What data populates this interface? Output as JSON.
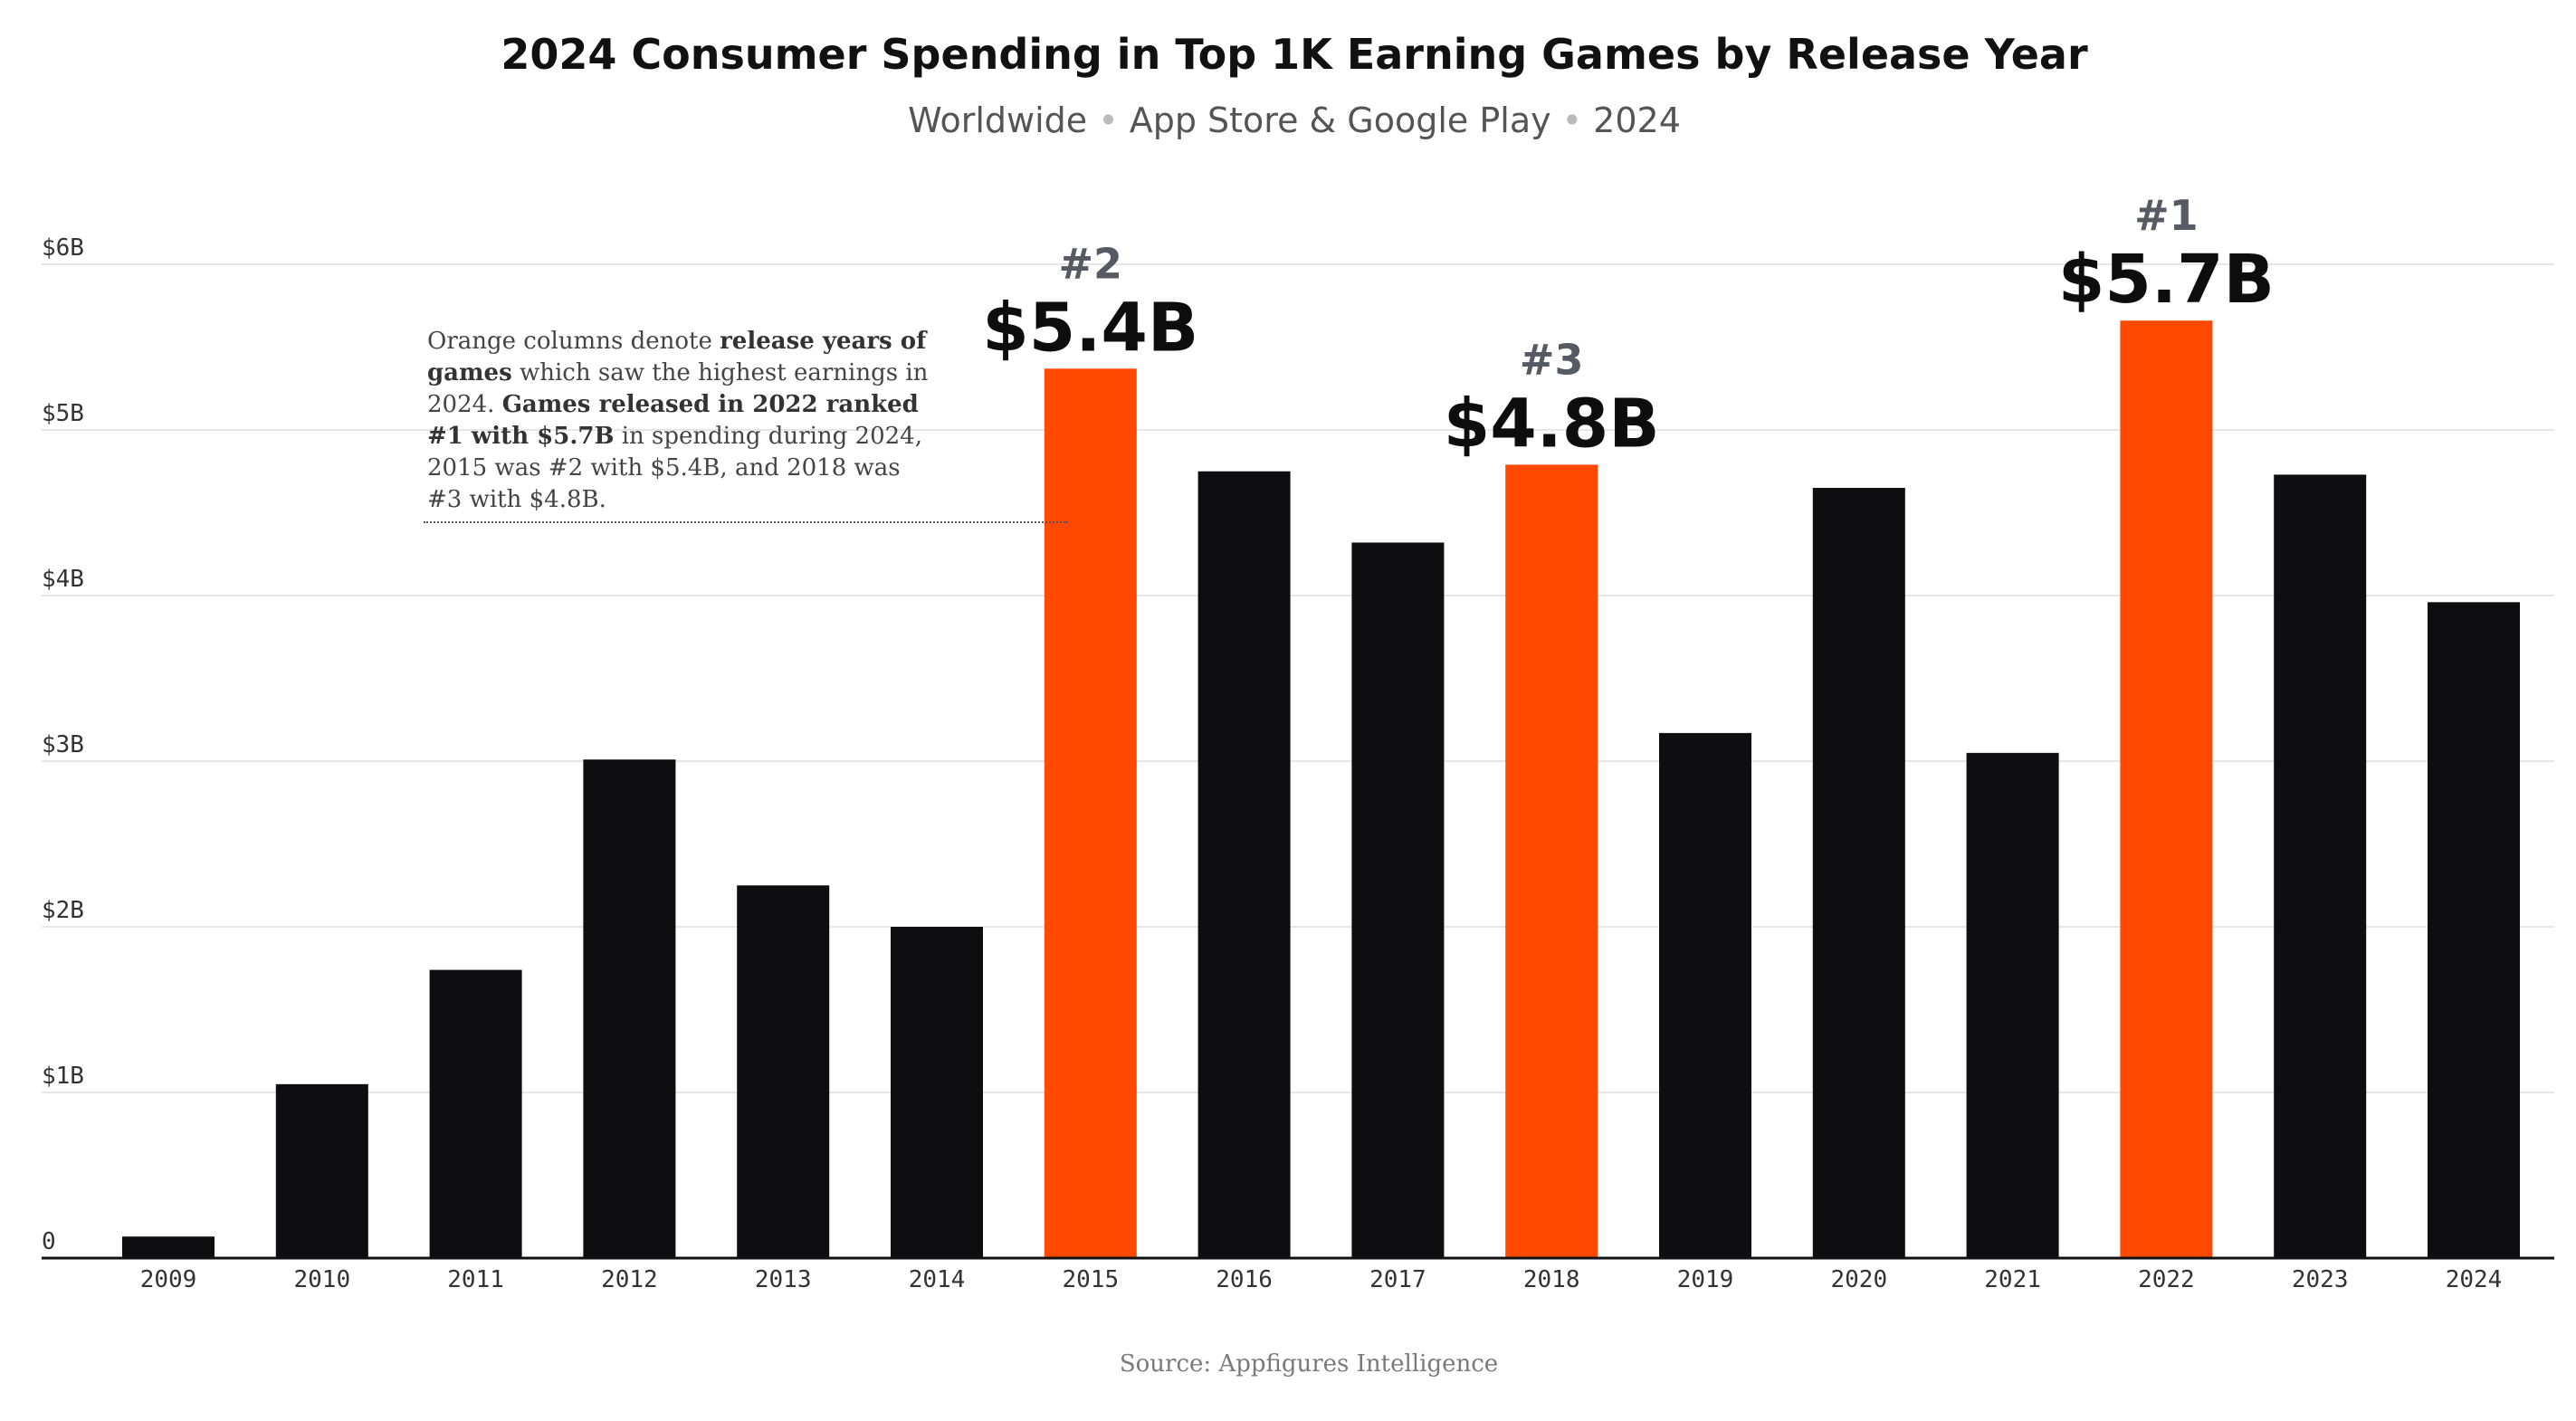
{
  "chart_data": {
    "type": "bar",
    "title": "2024 Consumer Spending in Top 1K Earning Games by Release Year",
    "subtitle_parts": [
      "Worldwide",
      "App Store & Google Play",
      "2024"
    ],
    "categories": [
      "2009",
      "2010",
      "2011",
      "2012",
      "2013",
      "2014",
      "2015",
      "2016",
      "2017",
      "2018",
      "2019",
      "2020",
      "2021",
      "2022",
      "2023",
      "2024"
    ],
    "series": [
      {
        "values": [
          0.13,
          1.05,
          1.74,
          3.01,
          2.25,
          2.0,
          5.37,
          4.75,
          4.32,
          4.79,
          3.17,
          4.65,
          3.05,
          5.66,
          4.73,
          3.96
        ]
      }
    ],
    "highlighted": {
      "2015": {
        "rank": "#2",
        "label": "$5.4B"
      },
      "2018": {
        "rank": "#3",
        "label": "$4.8B"
      },
      "2022": {
        "rank": "#1",
        "label": "$5.7B"
      }
    },
    "ylim": [
      0,
      6
    ],
    "yticks": [
      {
        "value": 0,
        "label": "0"
      },
      {
        "value": 1,
        "label": "$1B"
      },
      {
        "value": 2,
        "label": "$2B"
      },
      {
        "value": 3,
        "label": "$3B"
      },
      {
        "value": 4,
        "label": "$4B"
      },
      {
        "value": 5,
        "label": "$5B"
      },
      {
        "value": 6,
        "label": "$6B"
      }
    ],
    "xlabel": "",
    "ylabel": "",
    "grid": true,
    "legend": "none",
    "colors": {
      "default": "#0e0e10",
      "highlight": "#ff4900"
    }
  },
  "annotation": {
    "segments": [
      {
        "text": "Orange columns denote ",
        "bold": false
      },
      {
        "text": "release years of games",
        "bold": true
      },
      {
        "text": " which saw the highest earnings in 2024. ",
        "bold": false
      },
      {
        "text": "Games released in 2022 ranked #1 with $5.7B",
        "bold": true
      },
      {
        "text": " in spending during 2024, 2015 was #2 with $5.4B, and 2018 was #3 with $4.8B.",
        "bold": false
      }
    ]
  },
  "source": "Source: Appfigures Intelligence"
}
